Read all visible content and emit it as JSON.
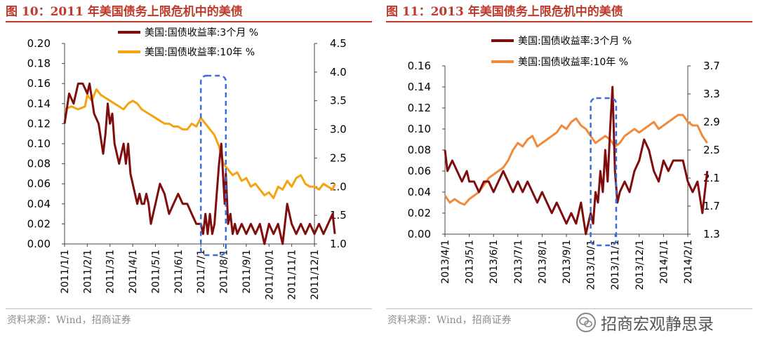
{
  "colors": {
    "title": "#c0392b",
    "series_3m": "#7f0d0d",
    "series_10y_1": "#f5a30f",
    "series_10y_2": "#f08a3c",
    "highlight": "#3a6fd8"
  },
  "watermark": {
    "text": "招商宏观静思录",
    "icon": "wechat-icon"
  },
  "panels": [
    {
      "title": "图 10：2011 年美国债务上限危机中的美债",
      "source": "资料来源：Wind，招商证券",
      "chart_data": {
        "type": "line",
        "x_ticks": [
          "2011/1/1",
          "2011/2/1",
          "2011/3/1",
          "2011/4/1",
          "2011/5/1",
          "2011/6/1",
          "2011/7/1",
          "2011/8/1",
          "2011/9/1",
          "2011/10/1",
          "2011/11/1",
          "2011/12/1"
        ],
        "y_left": {
          "ylim": [
            0,
            0.2
          ],
          "ticks": [
            "0.00",
            "0.02",
            "0.04",
            "0.06",
            "0.08",
            "0.10",
            "0.12",
            "0.14",
            "0.16",
            "0.18",
            "0.20"
          ]
        },
        "y_right": {
          "ylim": [
            1.0,
            4.5
          ],
          "ticks": [
            "1.0",
            "1.5",
            "2.0",
            "2.5",
            "3.0",
            "3.5",
            "4.0",
            "4.5"
          ]
        },
        "legend": [
          "美国:国债收益率:3个月 %",
          "美国:国债收益率:10年 %"
        ],
        "highlight_x": [
          6.0,
          7.1
        ],
        "series": [
          {
            "name": "美国:国债收益率:3个月 %",
            "axis": "left",
            "x": [
              0,
              0.2,
              0.4,
              0.6,
              0.8,
              1.0,
              1.1,
              1.3,
              1.5,
              1.7,
              1.8,
              1.9,
              2.0,
              2.1,
              2.2,
              2.4,
              2.6,
              2.7,
              2.8,
              2.9,
              3.0,
              3.1,
              3.2,
              3.3,
              3.4,
              3.5,
              3.6,
              3.7,
              3.8,
              3.9,
              4.0,
              4.2,
              4.4,
              4.6,
              4.8,
              5.0,
              5.2,
              5.4,
              5.6,
              5.8,
              6.0,
              6.1,
              6.2,
              6.3,
              6.4,
              6.5,
              6.6,
              6.7,
              6.8,
              6.9,
              7.0,
              7.05,
              7.1,
              7.2,
              7.3,
              7.4,
              7.5,
              7.6,
              7.8,
              8.0,
              8.2,
              8.4,
              8.6,
              8.8,
              9.0,
              9.2,
              9.4,
              9.6,
              9.8,
              10.0,
              10.2,
              10.4,
              10.6,
              10.8,
              11.0,
              11.2,
              11.4,
              11.6,
              11.8,
              11.9
            ],
            "y": [
              0.12,
              0.15,
              0.14,
              0.16,
              0.16,
              0.15,
              0.16,
              0.13,
              0.12,
              0.09,
              0.11,
              0.14,
              0.12,
              0.13,
              0.1,
              0.08,
              0.1,
              0.08,
              0.1,
              0.07,
              0.06,
              0.05,
              0.04,
              0.05,
              0.04,
              0.04,
              0.05,
              0.04,
              0.02,
              0.03,
              0.04,
              0.06,
              0.05,
              0.03,
              0.04,
              0.05,
              0.04,
              0.04,
              0.03,
              0.02,
              0.02,
              0.01,
              0.03,
              0.01,
              0.03,
              0.01,
              0.02,
              0.05,
              0.08,
              0.1,
              0.06,
              0.04,
              0.07,
              0.02,
              0.03,
              0.01,
              0.02,
              0.01,
              0.02,
              0.01,
              0.02,
              0.01,
              0.02,
              0.0,
              0.02,
              0.01,
              0.02,
              0.0,
              0.04,
              0.02,
              0.01,
              0.02,
              0.01,
              0.02,
              0.01,
              0.02,
              0.01,
              0.02,
              0.03,
              0.01
            ]
          },
          {
            "name": "美国:国债收益率:10年 %",
            "axis": "right",
            "x": [
              0,
              0.3,
              0.6,
              0.9,
              1.0,
              1.2,
              1.4,
              1.6,
              1.8,
              2.0,
              2.2,
              2.4,
              2.6,
              2.8,
              3.0,
              3.2,
              3.4,
              3.6,
              3.8,
              4.0,
              4.2,
              4.4,
              4.6,
              4.8,
              5.0,
              5.2,
              5.4,
              5.6,
              5.8,
              6.0,
              6.2,
              6.4,
              6.6,
              6.8,
              7.0,
              7.2,
              7.4,
              7.6,
              7.8,
              8.0,
              8.2,
              8.4,
              8.6,
              8.8,
              9.0,
              9.2,
              9.4,
              9.6,
              9.8,
              10.0,
              10.2,
              10.4,
              10.6,
              10.8,
              11.0,
              11.2,
              11.4,
              11.6,
              11.8,
              11.9
            ],
            "y": [
              3.35,
              3.4,
              3.35,
              3.4,
              3.6,
              3.5,
              3.7,
              3.6,
              3.55,
              3.5,
              3.45,
              3.4,
              3.35,
              3.45,
              3.5,
              3.45,
              3.35,
              3.3,
              3.25,
              3.2,
              3.15,
              3.1,
              3.1,
              3.05,
              3.05,
              3.0,
              3.0,
              3.1,
              3.05,
              3.2,
              3.1,
              3.0,
              2.9,
              2.7,
              2.4,
              2.3,
              2.2,
              2.25,
              2.1,
              2.15,
              2.0,
              2.05,
              1.95,
              1.85,
              1.9,
              1.8,
              2.0,
              1.95,
              2.1,
              2.0,
              2.15,
              2.2,
              2.05,
              2.0,
              2.0,
              1.95,
              2.05,
              2.0,
              1.95,
              2.05
            ]
          }
        ]
      }
    },
    {
      "title": "图 11：2013 年美国债务上限危机中的美债",
      "source": "资料来源：Wind，招商证券",
      "chart_data": {
        "type": "line",
        "x_ticks": [
          "2013/4/1",
          "2013/5/1",
          "2013/6/1",
          "2013/7/1",
          "2013/8/1",
          "2013/9/1",
          "2013/10/1",
          "2013/11/1",
          "2013/12/1",
          "2014/1/1",
          "2014/2/1"
        ],
        "y_left": {
          "ylim": [
            0,
            0.16
          ],
          "ticks": [
            "0.00",
            "0.02",
            "0.04",
            "0.06",
            "0.08",
            "0.10",
            "0.12",
            "0.14",
            "0.16"
          ]
        },
        "y_right": {
          "ylim": [
            1.3,
            3.7
          ],
          "ticks": [
            "1.3",
            "1.7",
            "2.1",
            "2.5",
            "2.9",
            "3.3",
            "3.7"
          ]
        },
        "legend": [
          "美国:国债收益率:3个月 %",
          "美国:国债收益率:10年 %"
        ],
        "highlight_x": [
          6.0,
          7.05
        ],
        "series": [
          {
            "name": "美国:国债收益率:3个月 %",
            "axis": "left",
            "x": [
              0,
              0.1,
              0.3,
              0.5,
              0.7,
              0.9,
              1.0,
              1.2,
              1.4,
              1.6,
              1.8,
              2.0,
              2.2,
              2.4,
              2.6,
              2.8,
              3.0,
              3.2,
              3.4,
              3.6,
              3.8,
              4.0,
              4.2,
              4.4,
              4.6,
              4.8,
              5.0,
              5.2,
              5.4,
              5.6,
              5.8,
              6.0,
              6.1,
              6.2,
              6.3,
              6.4,
              6.5,
              6.6,
              6.7,
              6.8,
              6.9,
              7.0,
              7.1,
              7.2,
              7.4,
              7.6,
              7.8,
              8.0,
              8.2,
              8.4,
              8.6,
              8.8,
              9.0,
              9.2,
              9.4,
              9.6,
              9.8,
              10.0,
              10.2,
              10.4,
              10.6,
              10.8
            ],
            "y": [
              0.08,
              0.06,
              0.07,
              0.06,
              0.05,
              0.06,
              0.05,
              0.05,
              0.04,
              0.05,
              0.05,
              0.04,
              0.05,
              0.06,
              0.05,
              0.04,
              0.05,
              0.04,
              0.05,
              0.04,
              0.03,
              0.04,
              0.03,
              0.02,
              0.03,
              0.02,
              0.01,
              0.02,
              0.01,
              0.03,
              0.0,
              0.02,
              0.01,
              0.04,
              0.03,
              0.06,
              0.04,
              0.08,
              0.05,
              0.1,
              0.14,
              0.06,
              0.03,
              0.04,
              0.05,
              0.04,
              0.06,
              0.07,
              0.09,
              0.08,
              0.06,
              0.05,
              0.07,
              0.06,
              0.07,
              0.07,
              0.07,
              0.05,
              0.04,
              0.05,
              0.02,
              0.06
            ]
          },
          {
            "name": "美国:国债收益率:10年 %",
            "axis": "right",
            "x": [
              0,
              0.2,
              0.4,
              0.6,
              0.8,
              1.0,
              1.2,
              1.4,
              1.6,
              1.8,
              2.0,
              2.2,
              2.4,
              2.6,
              2.8,
              3.0,
              3.2,
              3.4,
              3.6,
              3.8,
              4.0,
              4.2,
              4.4,
              4.6,
              4.8,
              5.0,
              5.2,
              5.4,
              5.6,
              5.8,
              6.0,
              6.2,
              6.4,
              6.6,
              6.8,
              7.0,
              7.2,
              7.4,
              7.6,
              7.8,
              8.0,
              8.2,
              8.4,
              8.6,
              8.8,
              9.0,
              9.2,
              9.4,
              9.6,
              9.8,
              10.0,
              10.2,
              10.4,
              10.6,
              10.8
            ],
            "y": [
              1.85,
              1.75,
              1.8,
              1.75,
              1.72,
              1.8,
              1.85,
              1.9,
              2.0,
              2.1,
              2.15,
              2.2,
              2.25,
              2.35,
              2.5,
              2.6,
              2.55,
              2.65,
              2.7,
              2.55,
              2.6,
              2.65,
              2.7,
              2.75,
              2.85,
              2.8,
              2.9,
              2.95,
              2.85,
              2.8,
              2.7,
              2.6,
              2.65,
              2.7,
              2.65,
              2.55,
              2.6,
              2.7,
              2.75,
              2.8,
              2.75,
              2.8,
              2.85,
              2.9,
              2.8,
              2.85,
              2.9,
              2.95,
              3.0,
              3.0,
              2.9,
              2.85,
              2.85,
              2.7,
              2.6
            ]
          }
        ]
      }
    }
  ]
}
